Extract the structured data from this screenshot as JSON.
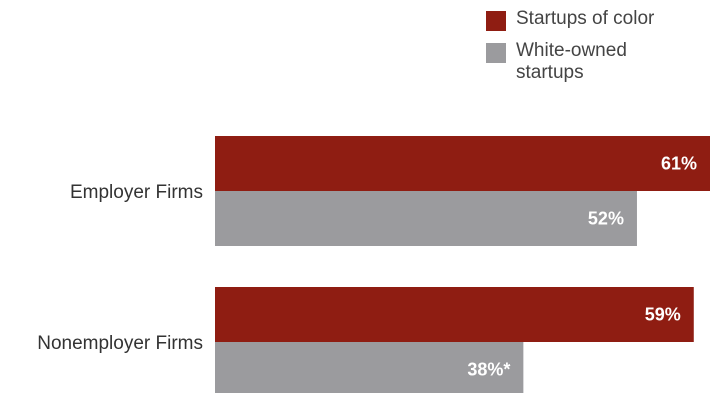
{
  "chart_data": {
    "type": "bar",
    "orientation": "horizontal",
    "categories": [
      "Employer Firms",
      "Nonemployer Firms"
    ],
    "series": [
      {
        "name": "Startups of color",
        "values": [
          61,
          59
        ],
        "labels": [
          "61%",
          "59%"
        ],
        "color": "#8f1d12"
      },
      {
        "name": "White-owned startups",
        "values": [
          52,
          38
        ],
        "labels": [
          "52%",
          "38%*"
        ],
        "color": "#9b9b9e"
      }
    ],
    "xlim": [
      0,
      61
    ],
    "grid": false,
    "legend_position": "top-right"
  }
}
